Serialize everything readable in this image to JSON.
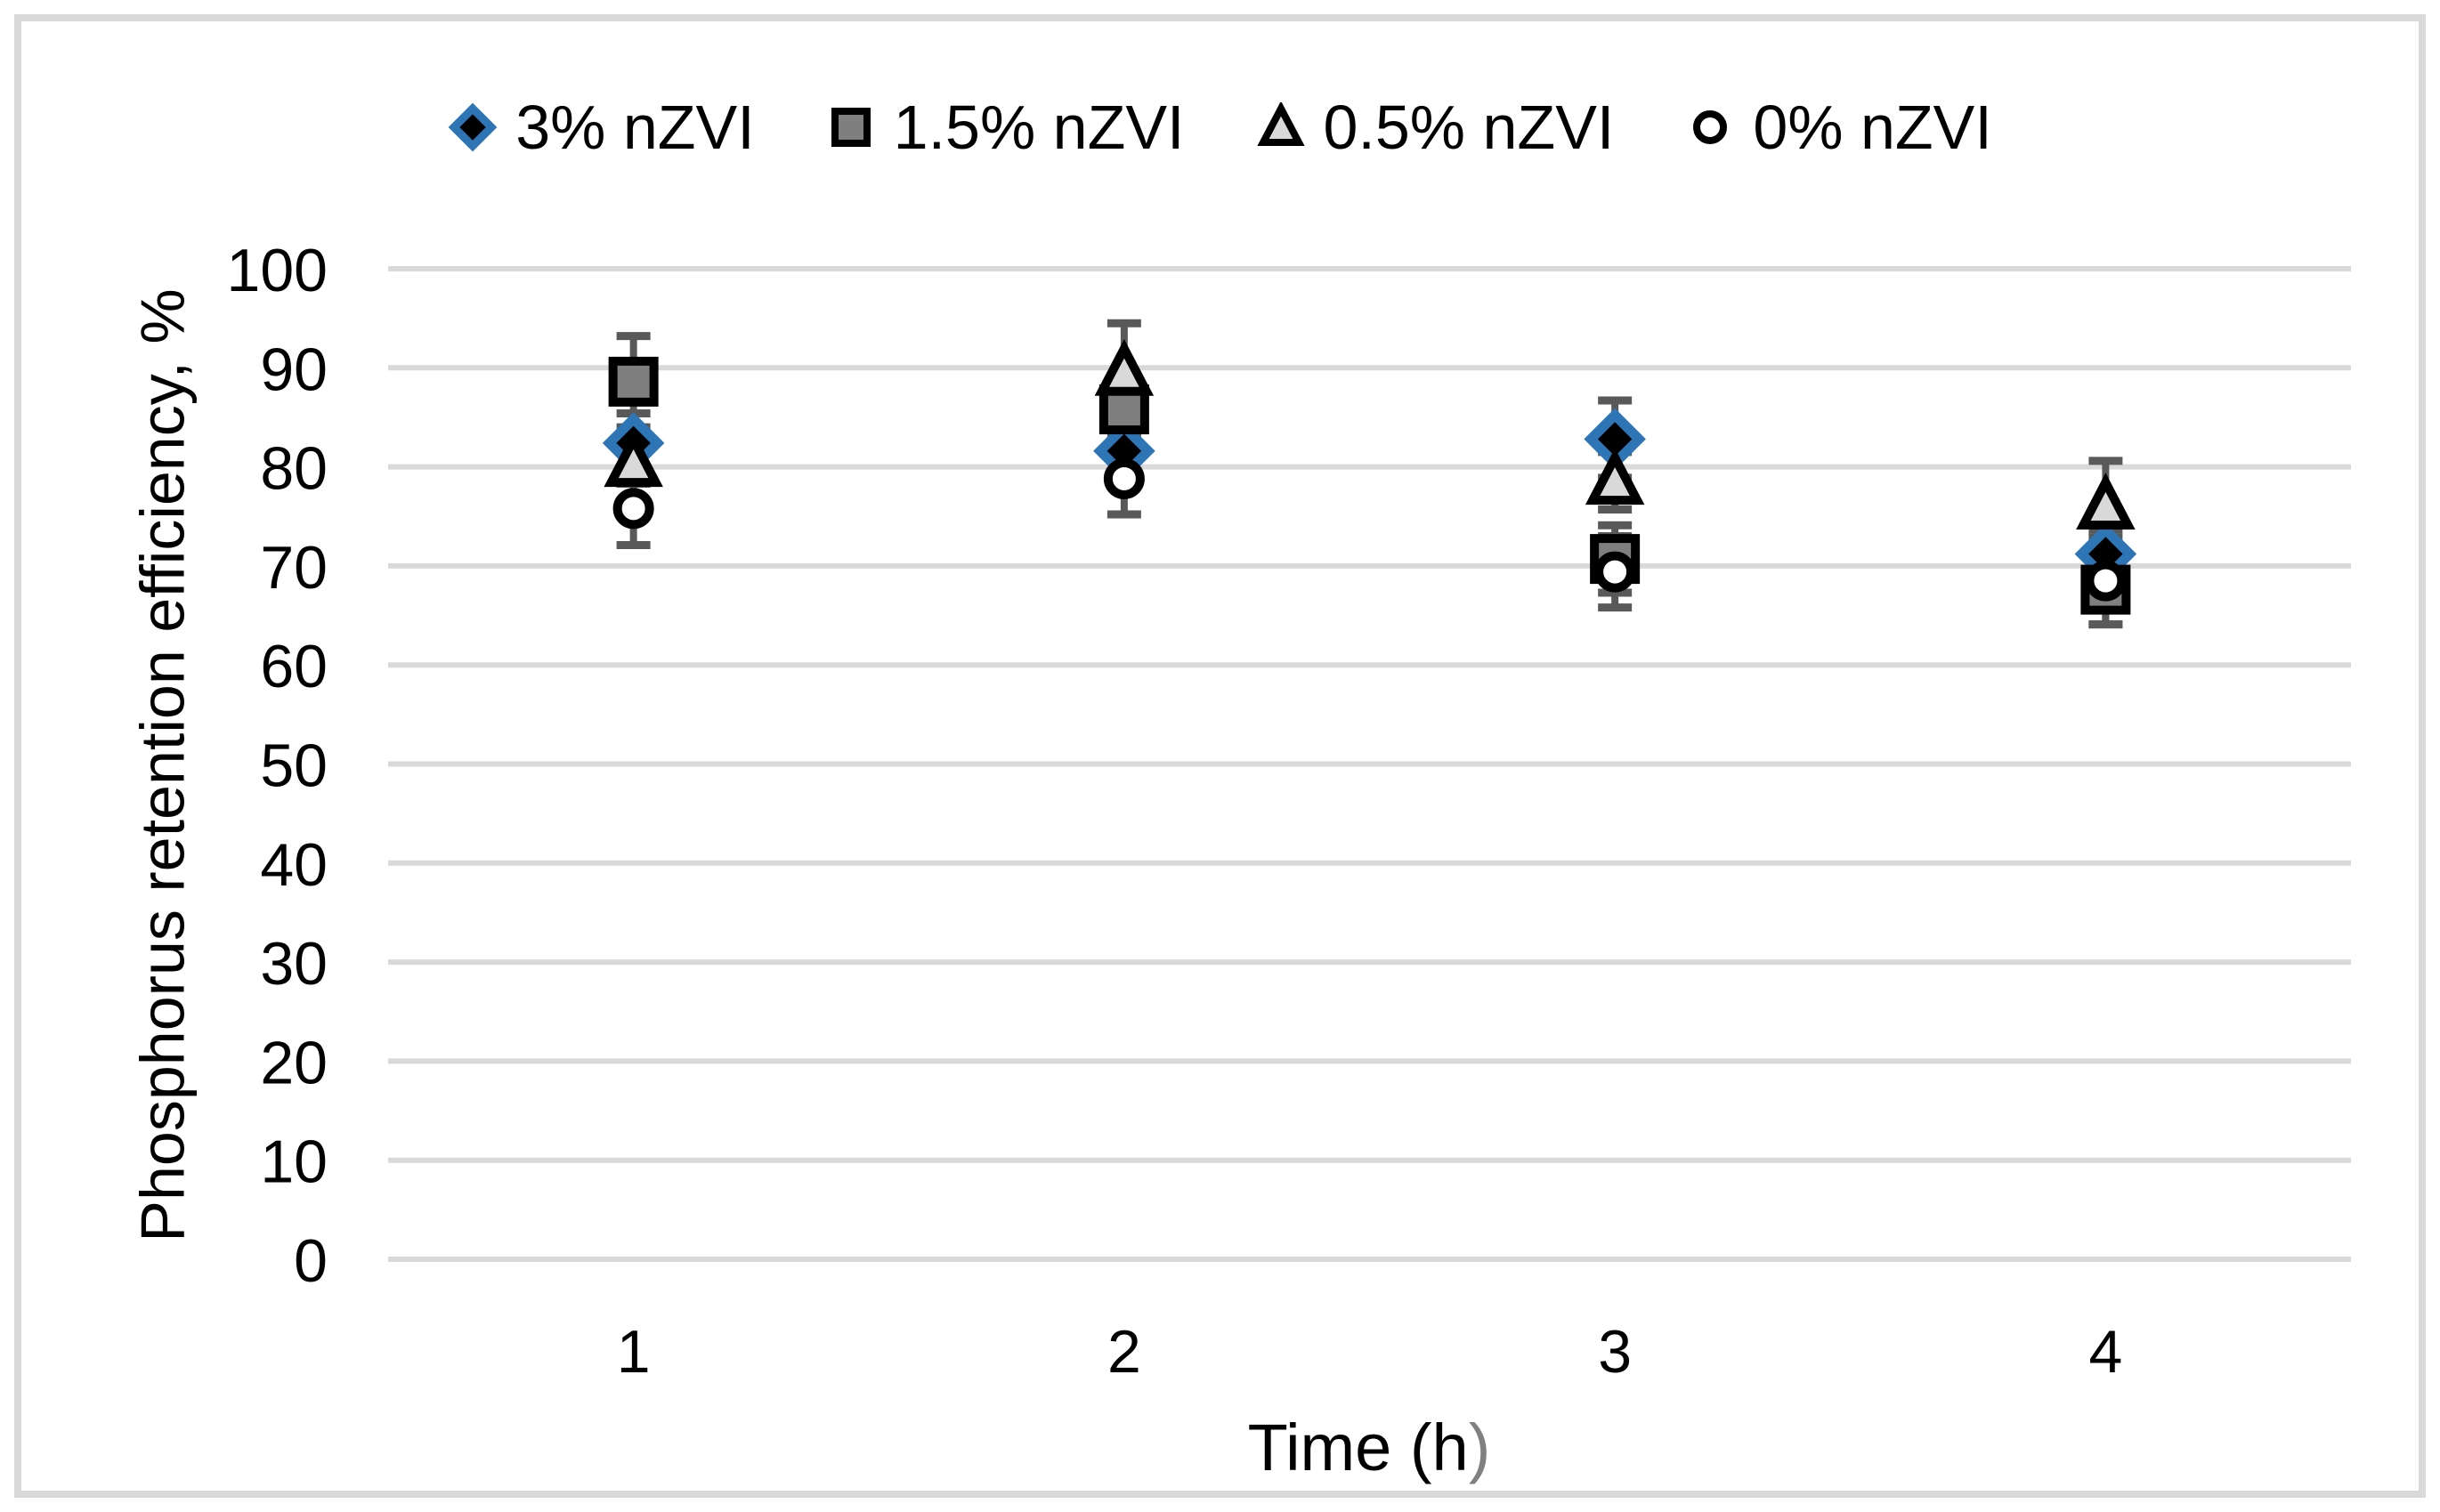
{
  "figure": {
    "background": "#FFFFFF",
    "border_color": "#D9D9D9"
  },
  "chart_data": {
    "type": "scatter",
    "title": "",
    "ylabel": "Phosphorus retention efficiency, %",
    "xlabel_main": "Time (h",
    "xlabel_paren": ")",
    "xlabel_paren_color": "#808080",
    "x_categories": [
      "1",
      "2",
      "3",
      "4"
    ],
    "ylim": [
      0,
      100
    ],
    "yticks": [
      0,
      10,
      20,
      30,
      40,
      50,
      60,
      70,
      80,
      90,
      100
    ],
    "grid": "horizontal",
    "gridline_color": "#D9D9D9",
    "error_bar_color": "#595959",
    "text_color": "#000000",
    "legend_position": "top-center",
    "series": [
      {
        "name": "3% nZVI",
        "marker": "diamond",
        "fill": "#000000",
        "stroke": "#2E75B6",
        "values": [
          82.4,
          81.6,
          82.8,
          71.2
        ],
        "errors": [
          3.0,
          2.5,
          3.9,
          2.5
        ]
      },
      {
        "name": "1.5% nZVI",
        "marker": "square",
        "fill": "#7F7F7F",
        "stroke": "#000000",
        "values": [
          88.6,
          85.8,
          70.7,
          67.6
        ],
        "errors": [
          4.6,
          2.4,
          3.4,
          3.5
        ]
      },
      {
        "name": "0.5% nZVI",
        "marker": "triangle",
        "fill": "#D9D9D9",
        "stroke": "#000000",
        "values": [
          80.4,
          89.6,
          78.6,
          76.1
        ],
        "errors": [
          2.1,
          4.9,
          2.9,
          4.5
        ]
      },
      {
        "name": "0% nZVI",
        "marker": "circle",
        "fill": "#FFFFFF",
        "stroke": "#000000",
        "values": [
          75.8,
          78.8,
          69.4,
          68.5
        ],
        "errors": [
          3.7,
          3.6,
          3.6,
          4.4
        ]
      }
    ]
  }
}
